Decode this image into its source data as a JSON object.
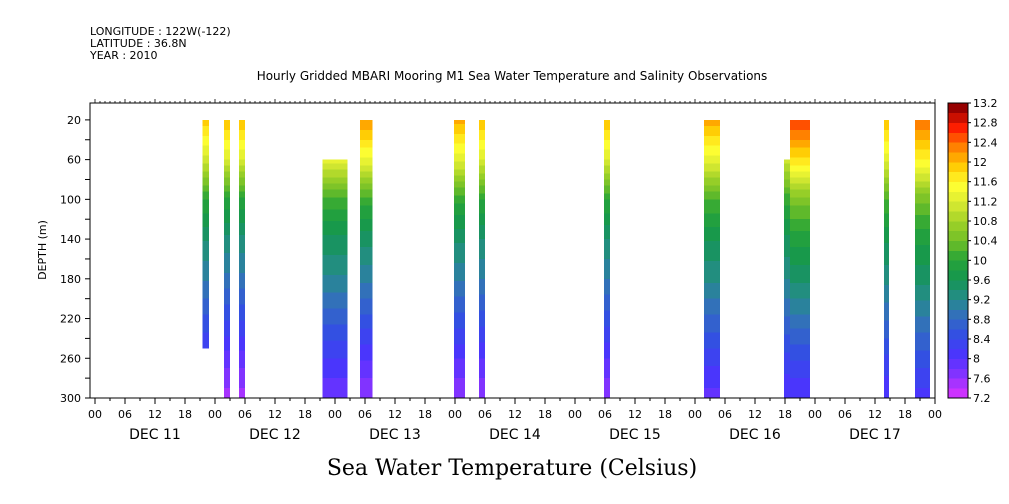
{
  "header": {
    "longitude": "LONGITUDE : 122W(-122)",
    "latitude": "LATITUDE : 36.8N",
    "year": "YEAR : 2010"
  },
  "chart_data": {
    "type": "heatmap",
    "title": "Hourly Gridded MBARI Mooring M1 Sea Water Temperature and Salinity Observations",
    "bottom_title": "Sea Water Temperature (Celsius)",
    "ylabel": "DEPTH (m)",
    "xlabel": "",
    "x_unit": "hours since DEC 11 00:00",
    "xlim": [
      -1,
      168
    ],
    "ylim": [
      300,
      3
    ],
    "y_ticks": [
      20,
      60,
      100,
      140,
      180,
      220,
      260,
      300
    ],
    "x_tick_labels": [
      "00",
      "06",
      "12",
      "18",
      "00",
      "06",
      "12",
      "18",
      "00",
      "06",
      "12",
      "18",
      "00",
      "06",
      "12",
      "18",
      "00",
      "06",
      "12",
      "18",
      "00",
      "06",
      "12",
      "18",
      "00",
      "06",
      "12",
      "18",
      "00"
    ],
    "day_labels": [
      "DEC 11",
      "DEC 12",
      "DEC 13",
      "DEC 14",
      "DEC 15",
      "DEC 16",
      "DEC 17"
    ],
    "colorbar": {
      "min": 7.2,
      "max": 13.2,
      "step": 0.2,
      "tick_labels": [
        "13.2",
        "12.8",
        "12.4",
        "12",
        "11.6",
        "11.2",
        "10.8",
        "10.4",
        "10",
        "9.6",
        "9.2",
        "8.8",
        "8.4",
        "8",
        "7.6",
        "7.2"
      ]
    },
    "profile": {
      "depths": [
        20,
        60,
        100,
        140,
        180,
        220,
        260,
        300
      ],
      "temperatures": [
        12.0,
        11.2,
        10.0,
        9.4,
        9.0,
        8.5,
        8.0,
        7.6
      ]
    },
    "observations": [
      {
        "start": 21.5,
        "end": 22.8,
        "top": 20,
        "bottom": 250,
        "t_top": 11.9,
        "t_bottom": 8.2
      },
      {
        "start": 25.8,
        "end": 27.0,
        "top": 20,
        "bottom": 300,
        "t_top": 12.0,
        "t_bottom": 7.5
      },
      {
        "start": 28.8,
        "end": 30.0,
        "top": 20,
        "bottom": 300,
        "t_top": 12.0,
        "t_bottom": 7.5
      },
      {
        "start": 45.5,
        "end": 50.5,
        "top": 60,
        "bottom": 300,
        "t_top": 11.3,
        "t_bottom": 7.8
      },
      {
        "start": 53.0,
        "end": 55.5,
        "top": 20,
        "bottom": 300,
        "t_top": 12.2,
        "t_bottom": 7.6
      },
      {
        "start": 71.8,
        "end": 74.0,
        "top": 20,
        "bottom": 300,
        "t_top": 12.1,
        "t_bottom": 7.6
      },
      {
        "start": 76.8,
        "end": 78.0,
        "top": 20,
        "bottom": 300,
        "t_top": 12.0,
        "t_bottom": 7.6
      },
      {
        "start": 101.8,
        "end": 103.0,
        "top": 20,
        "bottom": 300,
        "t_top": 12.0,
        "t_bottom": 7.6
      },
      {
        "start": 121.8,
        "end": 125.0,
        "top": 20,
        "bottom": 300,
        "t_top": 12.1,
        "t_bottom": 7.9
      },
      {
        "start": 137.8,
        "end": 139.0,
        "top": 60,
        "bottom": 300,
        "t_top": 11.1,
        "t_bottom": 8.0
      },
      {
        "start": 139.0,
        "end": 143.0,
        "top": 20,
        "bottom": 300,
        "t_top": 12.6,
        "t_bottom": 8.0
      },
      {
        "start": 157.8,
        "end": 158.8,
        "top": 20,
        "bottom": 300,
        "t_top": 12.0,
        "t_bottom": 8.0
      },
      {
        "start": 164.0,
        "end": 167.0,
        "top": 20,
        "bottom": 300,
        "t_top": 12.4,
        "t_bottom": 8.1
      }
    ]
  }
}
